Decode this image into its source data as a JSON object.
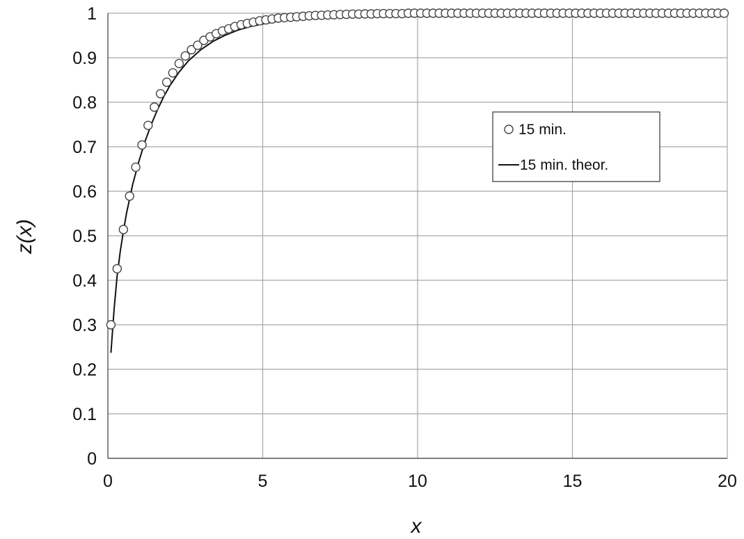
{
  "chart_data": {
    "type": "scatter",
    "xlabel": "x",
    "ylabel": "z(x)",
    "xlim": [
      0,
      20
    ],
    "ylim": [
      0,
      1
    ],
    "xticks": [
      "0",
      "5",
      "10",
      "15",
      "20"
    ],
    "yticks": [
      "0",
      "0.1",
      "0.2",
      "0.3",
      "0.4",
      "0.5",
      "0.6",
      "0.7",
      "0.8",
      "0.9",
      "1"
    ],
    "grid": true,
    "legend_position": "upper-right",
    "series": [
      {
        "name": "15 min.",
        "type": "scatter",
        "marker": "open-circle",
        "x": [
          0.1,
          0.3,
          0.5,
          0.7,
          0.9,
          1.1,
          1.3,
          1.5,
          1.7,
          1.9,
          2.1,
          2.3,
          2.5,
          2.7,
          2.9,
          3.1,
          3.3,
          3.5,
          3.7,
          3.9,
          4.1,
          4.3,
          4.5,
          4.7,
          4.9,
          5.1,
          5.3,
          5.5,
          5.7,
          5.9,
          6.1,
          6.3,
          6.5,
          6.7,
          6.9,
          7.1,
          7.3,
          7.5,
          7.7,
          7.9,
          8.1,
          8.3,
          8.5,
          8.7,
          8.9,
          9.1,
          9.3,
          9.5,
          9.7,
          9.9,
          10.1,
          10.3,
          10.5,
          10.7,
          10.9,
          11.1,
          11.3,
          11.5,
          11.7,
          11.9,
          12.1,
          12.3,
          12.5,
          12.7,
          12.9,
          13.1,
          13.3,
          13.5,
          13.7,
          13.9,
          14.1,
          14.3,
          14.5,
          14.7,
          14.9,
          15.1,
          15.3,
          15.5,
          15.7,
          15.9,
          16.1,
          16.3,
          16.5,
          16.7,
          16.9,
          17.1,
          17.3,
          17.5,
          17.7,
          17.9,
          18.1,
          18.3,
          18.5,
          18.7,
          18.9,
          19.1,
          19.3,
          19.5,
          19.7,
          19.9
        ],
        "y": [
          0.3,
          0.426,
          0.514,
          0.589,
          0.654,
          0.704,
          0.748,
          0.789,
          0.819,
          0.845,
          0.866,
          0.887,
          0.904,
          0.918,
          0.928,
          0.939,
          0.947,
          0.954,
          0.96,
          0.965,
          0.97,
          0.974,
          0.977,
          0.98,
          0.983,
          0.985,
          0.987,
          0.989,
          0.99,
          0.991,
          0.992,
          0.993,
          0.994,
          0.995,
          0.9955,
          0.996,
          0.9965,
          0.997,
          0.9975,
          0.998,
          0.998,
          0.9985,
          0.9985,
          0.999,
          0.999,
          0.999,
          0.999,
          0.999,
          1,
          1,
          1,
          1,
          1,
          1,
          1,
          1,
          1,
          1,
          1,
          1,
          1,
          1,
          1,
          1,
          1,
          1,
          1,
          1,
          1,
          1,
          1,
          1,
          1,
          1,
          1,
          1,
          1,
          1,
          1,
          1,
          1,
          1,
          1,
          1,
          1,
          1,
          1,
          1,
          1,
          1,
          1,
          1,
          1,
          1,
          1,
          1,
          1,
          1,
          1,
          1
        ]
      },
      {
        "name": "15 min. theor.",
        "type": "line",
        "x": [
          0.1,
          0.2,
          0.3,
          0.4,
          0.5,
          0.6,
          0.8,
          1.0,
          1.2,
          1.4,
          1.6,
          1.8,
          2.0,
          2.3,
          2.6,
          3.0,
          3.4,
          3.8,
          4.2,
          4.6,
          5.0,
          5.5,
          6.0,
          6.5,
          7.0,
          7.5,
          8.0,
          8.5,
          9.0,
          9.5,
          10.0,
          10.5,
          11.0
        ],
        "y": [
          0.237,
          0.334,
          0.41,
          0.465,
          0.51,
          0.55,
          0.615,
          0.667,
          0.712,
          0.75,
          0.783,
          0.812,
          0.837,
          0.868,
          0.893,
          0.918,
          0.937,
          0.951,
          0.962,
          0.97,
          0.976,
          0.982,
          0.986,
          0.989,
          0.992,
          0.994,
          0.995,
          0.996,
          0.997,
          0.998,
          0.999,
          0.999,
          1.0
        ]
      }
    ]
  }
}
